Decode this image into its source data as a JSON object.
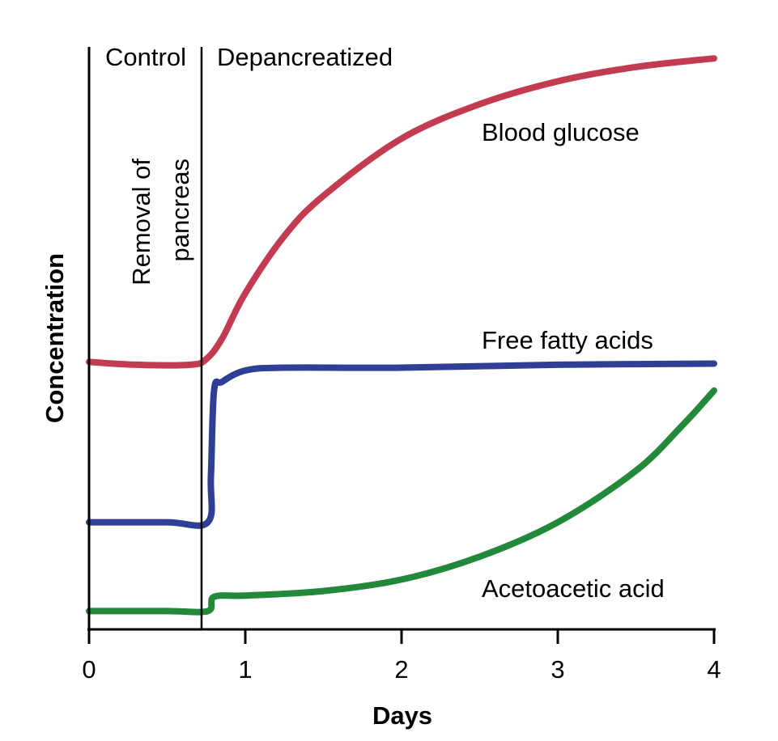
{
  "chart_data": {
    "type": "line",
    "title": "",
    "xlabel": "Days",
    "ylabel": "Concentration",
    "xlim": [
      0,
      4
    ],
    "ylim": [
      0,
      1
    ],
    "x_ticks": [
      "0",
      "1",
      "2",
      "3",
      "4"
    ],
    "y_ticks": [],
    "grid": false,
    "legend": "none (series labeled directly on curves)",
    "regions": [
      {
        "label": "Control",
        "x_range": [
          0,
          0.72
        ]
      },
      {
        "label": "Depancreatized",
        "x_range": [
          0.72,
          4
        ]
      }
    ],
    "event": {
      "x": 0.72,
      "label_lines": [
        "Removal of",
        "pancreas"
      ]
    },
    "series": [
      {
        "name": "Blood glucose",
        "color": "#c23b51",
        "x": [
          0,
          0.3,
          0.65,
          0.75,
          0.85,
          1.0,
          1.25,
          1.5,
          2.0,
          2.5,
          3.0,
          3.5,
          4.0
        ],
        "y": [
          0.45,
          0.445,
          0.445,
          0.455,
          0.49,
          0.57,
          0.67,
          0.74,
          0.84,
          0.9,
          0.94,
          0.965,
          0.98
        ]
      },
      {
        "name": "Free fatty acids",
        "color": "#2f3f95",
        "x": [
          0,
          0.5,
          0.76,
          0.78,
          0.8,
          0.85,
          1.0,
          1.25,
          2.0,
          3.0,
          4.0
        ],
        "y": [
          0.17,
          0.17,
          0.17,
          0.25,
          0.4,
          0.415,
          0.435,
          0.44,
          0.44,
          0.445,
          0.447
        ]
      },
      {
        "name": "Acetoacetic acid",
        "color": "#22883a",
        "x": [
          0,
          0.5,
          0.76,
          0.8,
          1.0,
          1.5,
          2.0,
          2.5,
          3.0,
          3.5,
          3.8,
          4.0
        ],
        "y": [
          0.015,
          0.015,
          0.015,
          0.04,
          0.042,
          0.05,
          0.07,
          0.11,
          0.17,
          0.26,
          0.34,
          0.4
        ]
      }
    ]
  }
}
